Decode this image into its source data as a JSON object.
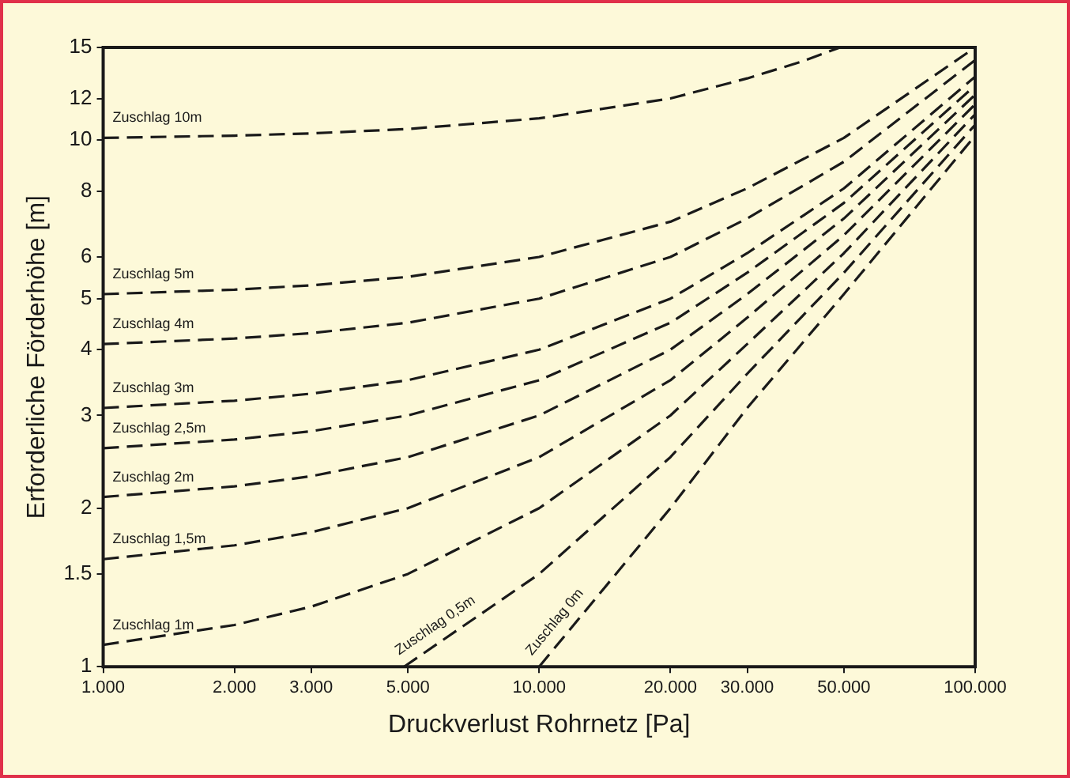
{
  "chart_data": {
    "type": "line",
    "xlabel": "Druckverlust Rohrnetz [Pa]",
    "ylabel": "Erforderliche Förderhöhe [m]",
    "log": "xy",
    "grid": false,
    "legend": false,
    "marker": "none",
    "line_style": "dashed",
    "x": [
      1000,
      2000,
      3000,
      5000,
      10000,
      20000,
      30000,
      50000,
      100000
    ],
    "xlim": [
      1000,
      100000
    ],
    "ylim": [
      1,
      15
    ],
    "xticks": [
      {
        "value": 1000,
        "label": "1.000"
      },
      {
        "value": 2000,
        "label": "2.000"
      },
      {
        "value": 3000,
        "label": "3.000"
      },
      {
        "value": 5000,
        "label": "5.000"
      },
      {
        "value": 10000,
        "label": "10.000"
      },
      {
        "value": 20000,
        "label": "20.000"
      },
      {
        "value": 30000,
        "label": "30.000"
      },
      {
        "value": 50000,
        "label": "50.000"
      },
      {
        "value": 100000,
        "label": "100.000"
      }
    ],
    "yticks": [
      1,
      1.5,
      2,
      3,
      4,
      5,
      6,
      8,
      10,
      12,
      15
    ],
    "series": [
      {
        "name": "Zuschlag 10m",
        "color": "#1a1a1a",
        "x": [
          1000,
          2000,
          3000,
          5000,
          10000,
          20000,
          30000,
          40000,
          49000
        ],
        "values": [
          10.1,
          10.2,
          10.3,
          10.5,
          11.0,
          12.0,
          13.1,
          14.1,
          15.0
        ]
      },
      {
        "name": "Zuschlag 5m",
        "color": "#1a1a1a",
        "values": [
          5.1,
          5.2,
          5.3,
          5.5,
          6.0,
          7.0,
          8.1,
          10.1,
          15.0
        ]
      },
      {
        "name": "Zuschlag 4m",
        "color": "#1a1a1a",
        "values": [
          4.1,
          4.2,
          4.3,
          4.5,
          5.0,
          6.0,
          7.1,
          9.1,
          14.2
        ]
      },
      {
        "name": "Zuschlag 3m",
        "color": "#1a1a1a",
        "values": [
          3.1,
          3.2,
          3.3,
          3.5,
          4.0,
          5.0,
          6.1,
          8.1,
          13.2
        ]
      },
      {
        "name": "Zuschlag 2,5m",
        "color": "#1a1a1a",
        "values": [
          2.6,
          2.7,
          2.8,
          3.0,
          3.5,
          4.5,
          5.6,
          7.6,
          12.7
        ]
      },
      {
        "name": "Zuschlag 2m",
        "color": "#1a1a1a",
        "values": [
          2.1,
          2.2,
          2.3,
          2.5,
          3.0,
          4.0,
          5.1,
          7.1,
          12.2
        ]
      },
      {
        "name": "Zuschlag 1,5m",
        "color": "#1a1a1a",
        "values": [
          1.6,
          1.7,
          1.8,
          2.0,
          2.5,
          3.5,
          4.6,
          6.6,
          11.7
        ]
      },
      {
        "name": "Zuschlag 1m",
        "color": "#1a1a1a",
        "values": [
          1.1,
          1.2,
          1.3,
          1.5,
          2.0,
          3.0,
          4.1,
          6.1,
          11.2
        ]
      },
      {
        "name": "Zuschlag 0,5m",
        "color": "#1a1a1a",
        "x": [
          4900,
          10000,
          20000,
          30000,
          50000,
          100000
        ],
        "values": [
          1.0,
          1.5,
          2.5,
          3.6,
          5.6,
          10.7
        ]
      },
      {
        "name": "Zuschlag 0m",
        "color": "#1a1a1a",
        "x": [
          10000,
          20000,
          30000,
          50000,
          100000
        ],
        "values": [
          1.0,
          2.0,
          3.1,
          5.1,
          10.2
        ]
      }
    ]
  }
}
